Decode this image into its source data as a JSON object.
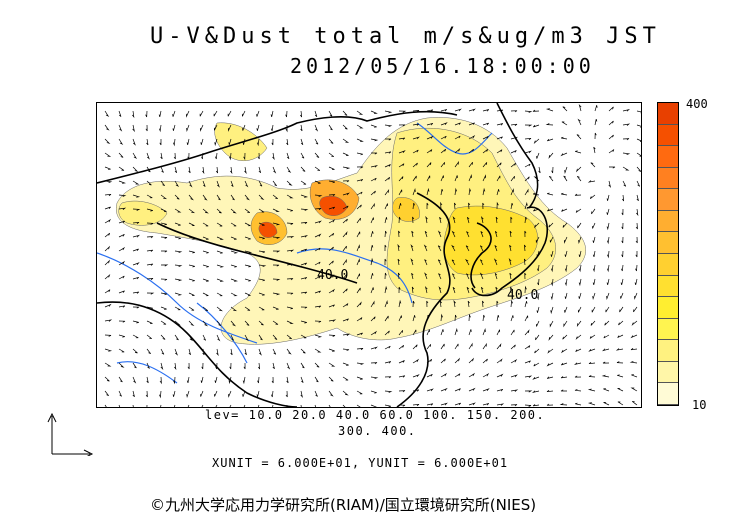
{
  "title": "U-V&Dust total m/s&ug/m3 JST",
  "datetime": "2012/05/16.18:00:00",
  "colorbar": {
    "max_label": "400",
    "min_label": "10",
    "colors": [
      "#fffbd6",
      "#fff6a8",
      "#fff280",
      "#fff450",
      "#ffee30",
      "#ffe030",
      "#ffd030",
      "#ffc030",
      "#ffae30",
      "#ff9830",
      "#ff8020",
      "#ff6a10",
      "#f55000",
      "#e84000"
    ]
  },
  "levels_line1": "lev= 10.0 20.0 40.0 60.0 100. 150. 200.",
  "levels_line2": "300. 400.",
  "contour_labels": [
    "40.0",
    "40.0"
  ],
  "units_line": "XUNIT = 6.000E+01, YUNIT = 6.000E+01",
  "copyright": "©九州大学応用力学研究所(RIAM)/国立環境研究所(NIES)"
}
